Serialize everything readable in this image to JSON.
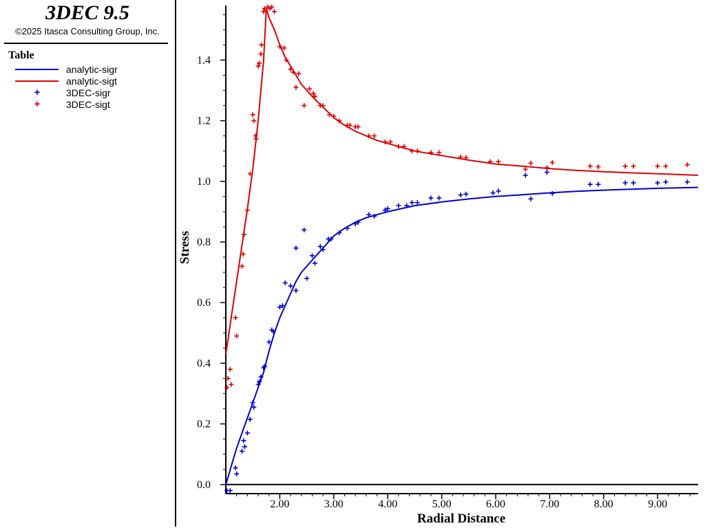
{
  "app": {
    "title": "3DEC 9.5",
    "copyright": "©2025 Itasca Consulting Group, Inc."
  },
  "legend": {
    "title": "Table",
    "items": [
      {
        "label": "analytic-sigr",
        "kind": "line",
        "color": "#0000cc"
      },
      {
        "label": "analytic-sigt",
        "kind": "line",
        "color": "#dd0000"
      },
      {
        "label": "3DEC-sigr",
        "kind": "marker",
        "color": "#0000cc"
      },
      {
        "label": "3DEC-sigt",
        "kind": "marker",
        "color": "#dd0000"
      }
    ]
  },
  "chart_data": {
    "type": "line",
    "title": "",
    "xlabel": "Radial Distance",
    "ylabel": "Stress",
    "xlim": [
      1.0,
      9.75
    ],
    "ylim": [
      -0.03,
      1.58
    ],
    "x_ticks": [
      2,
      3,
      4,
      5,
      6,
      7,
      8,
      9
    ],
    "x_tick_labels": [
      "2.00",
      "3.00",
      "4.00",
      "5.00",
      "6.00",
      "7.00",
      "8.00",
      "9.00"
    ],
    "y_ticks": [
      0,
      0.2,
      0.4,
      0.6,
      0.8,
      1.0,
      1.2,
      1.4
    ],
    "y_tick_labels": [
      "0.0",
      "0.2",
      "0.4",
      "0.6",
      "0.8",
      "1.0",
      "1.2",
      "1.4"
    ],
    "grid": false,
    "legend_position": "left-panel",
    "series": [
      {
        "name": "analytic-sigr",
        "kind": "line",
        "color": "#0000cc",
        "points": [
          [
            1.0,
            0.0
          ],
          [
            1.1,
            0.06
          ],
          [
            1.2,
            0.12
          ],
          [
            1.3,
            0.17
          ],
          [
            1.4,
            0.22
          ],
          [
            1.5,
            0.27
          ],
          [
            1.6,
            0.32
          ],
          [
            1.7,
            0.37
          ],
          [
            1.8,
            0.44
          ],
          [
            1.9,
            0.5
          ],
          [
            2.0,
            0.55
          ],
          [
            2.1,
            0.59
          ],
          [
            2.2,
            0.63
          ],
          [
            2.3,
            0.67
          ],
          [
            2.4,
            0.7
          ],
          [
            2.5,
            0.72
          ],
          [
            2.6,
            0.74
          ],
          [
            2.7,
            0.76
          ],
          [
            2.8,
            0.78
          ],
          [
            2.9,
            0.8
          ],
          [
            3.0,
            0.82
          ],
          [
            3.2,
            0.845
          ],
          [
            3.4,
            0.865
          ],
          [
            3.6,
            0.88
          ],
          [
            3.8,
            0.89
          ],
          [
            4.0,
            0.9
          ],
          [
            4.5,
            0.92
          ],
          [
            5.0,
            0.932
          ],
          [
            5.5,
            0.942
          ],
          [
            6.0,
            0.95
          ],
          [
            6.5,
            0.956
          ],
          [
            7.0,
            0.962
          ],
          [
            7.5,
            0.967
          ],
          [
            8.0,
            0.971
          ],
          [
            8.5,
            0.974
          ],
          [
            9.0,
            0.977
          ],
          [
            9.5,
            0.979
          ],
          [
            9.75,
            0.98
          ]
        ]
      },
      {
        "name": "analytic-sigt",
        "kind": "line",
        "color": "#dd0000",
        "points": [
          [
            1.0,
            0.43
          ],
          [
            1.1,
            0.55
          ],
          [
            1.2,
            0.67
          ],
          [
            1.3,
            0.79
          ],
          [
            1.4,
            0.91
          ],
          [
            1.5,
            1.04
          ],
          [
            1.6,
            1.2
          ],
          [
            1.7,
            1.4
          ],
          [
            1.75,
            1.57
          ],
          [
            1.8,
            1.54
          ],
          [
            1.9,
            1.5
          ],
          [
            2.0,
            1.45
          ],
          [
            2.1,
            1.41
          ],
          [
            2.2,
            1.38
          ],
          [
            2.3,
            1.35
          ],
          [
            2.4,
            1.32
          ],
          [
            2.5,
            1.3
          ],
          [
            2.6,
            1.28
          ],
          [
            2.8,
            1.245
          ],
          [
            3.0,
            1.21
          ],
          [
            3.2,
            1.185
          ],
          [
            3.4,
            1.165
          ],
          [
            3.6,
            1.15
          ],
          [
            3.8,
            1.135
          ],
          [
            4.0,
            1.125
          ],
          [
            4.5,
            1.1
          ],
          [
            5.0,
            1.085
          ],
          [
            5.5,
            1.07
          ],
          [
            6.0,
            1.057
          ],
          [
            6.5,
            1.05
          ],
          [
            7.0,
            1.042
          ],
          [
            7.5,
            1.036
          ],
          [
            8.0,
            1.032
          ],
          [
            8.5,
            1.028
          ],
          [
            9.0,
            1.025
          ],
          [
            9.5,
            1.022
          ],
          [
            9.75,
            1.02
          ]
        ]
      },
      {
        "name": "3DEC-sigr",
        "kind": "marker",
        "color": "#0000cc",
        "points": [
          [
            1.02,
            -0.02
          ],
          [
            1.08,
            -0.02
          ],
          [
            1.18,
            0.055
          ],
          [
            1.2,
            0.035
          ],
          [
            1.3,
            0.11
          ],
          [
            1.33,
            0.145
          ],
          [
            1.35,
            0.125
          ],
          [
            1.4,
            0.17
          ],
          [
            1.45,
            0.215
          ],
          [
            1.5,
            0.27
          ],
          [
            1.52,
            0.255
          ],
          [
            1.6,
            0.33
          ],
          [
            1.62,
            0.34
          ],
          [
            1.65,
            0.355
          ],
          [
            1.7,
            0.385
          ],
          [
            1.72,
            0.39
          ],
          [
            1.8,
            0.47
          ],
          [
            1.85,
            0.51
          ],
          [
            1.88,
            0.505
          ],
          [
            2.0,
            0.585
          ],
          [
            2.05,
            0.59
          ],
          [
            2.1,
            0.665
          ],
          [
            2.2,
            0.655
          ],
          [
            2.3,
            0.78
          ],
          [
            2.3,
            0.64
          ],
          [
            2.45,
            0.84
          ],
          [
            2.5,
            0.68
          ],
          [
            2.6,
            0.755
          ],
          [
            2.65,
            0.73
          ],
          [
            2.75,
            0.785
          ],
          [
            2.8,
            0.775
          ],
          [
            2.9,
            0.81
          ],
          [
            2.95,
            0.81
          ],
          [
            3.1,
            0.83
          ],
          [
            3.25,
            0.845
          ],
          [
            3.4,
            0.86
          ],
          [
            3.45,
            0.865
          ],
          [
            3.65,
            0.89
          ],
          [
            3.75,
            0.885
          ],
          [
            3.95,
            0.905
          ],
          [
            4.0,
            0.91
          ],
          [
            4.2,
            0.92
          ],
          [
            4.35,
            0.92
          ],
          [
            4.45,
            0.93
          ],
          [
            4.55,
            0.93
          ],
          [
            4.8,
            0.945
          ],
          [
            4.95,
            0.945
          ],
          [
            5.35,
            0.955
          ],
          [
            5.45,
            0.958
          ],
          [
            5.95,
            0.962
          ],
          [
            6.05,
            0.968
          ],
          [
            6.55,
            1.02
          ],
          [
            6.65,
            0.942
          ],
          [
            6.95,
            1.03
          ],
          [
            7.05,
            0.96
          ],
          [
            7.75,
            0.99
          ],
          [
            7.9,
            0.99
          ],
          [
            8.4,
            0.995
          ],
          [
            8.55,
            0.995
          ],
          [
            9.0,
            0.995
          ],
          [
            9.15,
            0.998
          ],
          [
            9.55,
            0.998
          ]
        ]
      },
      {
        "name": "3DEC-sigt",
        "kind": "marker",
        "color": "#dd0000",
        "points": [
          [
            1.02,
            0.32
          ],
          [
            1.04,
            0.35
          ],
          [
            1.08,
            0.38
          ],
          [
            1.1,
            0.33
          ],
          [
            1.18,
            0.55
          ],
          [
            1.2,
            0.49
          ],
          [
            1.3,
            0.72
          ],
          [
            1.32,
            0.76
          ],
          [
            1.34,
            0.825
          ],
          [
            1.4,
            0.905
          ],
          [
            1.45,
            1.025
          ],
          [
            1.5,
            1.22
          ],
          [
            1.52,
            1.2
          ],
          [
            1.55,
            1.15
          ],
          [
            1.56,
            1.14
          ],
          [
            1.6,
            1.38
          ],
          [
            1.62,
            1.39
          ],
          [
            1.65,
            1.42
          ],
          [
            1.66,
            1.45
          ],
          [
            1.7,
            1.56
          ],
          [
            1.72,
            1.57
          ],
          [
            1.78,
            1.575
          ],
          [
            1.82,
            1.57
          ],
          [
            1.85,
            1.575
          ],
          [
            1.9,
            1.56
          ],
          [
            2.0,
            1.445
          ],
          [
            2.08,
            1.44
          ],
          [
            2.12,
            1.4
          ],
          [
            2.2,
            1.37
          ],
          [
            2.25,
            1.36
          ],
          [
            2.3,
            1.31
          ],
          [
            2.35,
            1.355
          ],
          [
            2.45,
            1.25
          ],
          [
            2.55,
            1.305
          ],
          [
            2.62,
            1.29
          ],
          [
            2.65,
            1.28
          ],
          [
            2.75,
            1.25
          ],
          [
            2.8,
            1.25
          ],
          [
            2.92,
            1.22
          ],
          [
            3.0,
            1.215
          ],
          [
            3.1,
            1.2
          ],
          [
            3.25,
            1.185
          ],
          [
            3.3,
            1.185
          ],
          [
            3.4,
            1.18
          ],
          [
            3.45,
            1.18
          ],
          [
            3.65,
            1.15
          ],
          [
            3.75,
            1.15
          ],
          [
            3.95,
            1.13
          ],
          [
            4.05,
            1.13
          ],
          [
            4.2,
            1.115
          ],
          [
            4.3,
            1.115
          ],
          [
            4.45,
            1.1
          ],
          [
            4.55,
            1.1
          ],
          [
            4.8,
            1.095
          ],
          [
            4.95,
            1.095
          ],
          [
            5.35,
            1.08
          ],
          [
            5.45,
            1.078
          ],
          [
            5.9,
            1.065
          ],
          [
            6.05,
            1.065
          ],
          [
            6.55,
            1.04
          ],
          [
            6.65,
            1.06
          ],
          [
            6.95,
            1.045
          ],
          [
            7.05,
            1.062
          ],
          [
            7.75,
            1.05
          ],
          [
            7.9,
            1.048
          ],
          [
            8.4,
            1.05
          ],
          [
            8.55,
            1.05
          ],
          [
            9.0,
            1.05
          ],
          [
            9.15,
            1.05
          ],
          [
            9.55,
            1.055
          ]
        ]
      }
    ]
  }
}
